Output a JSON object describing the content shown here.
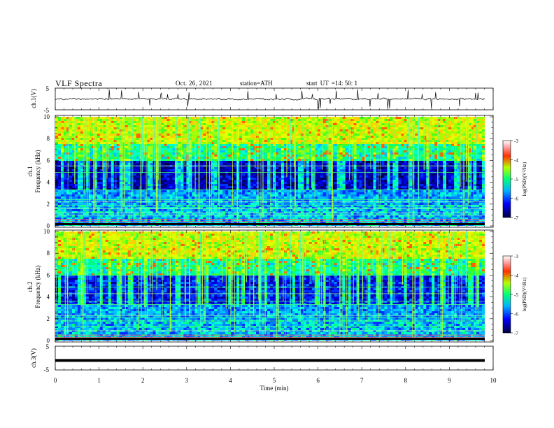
{
  "header": {
    "title": "VLF  Spectra",
    "date": "Oct. 26, 2021",
    "station": "station=ATH",
    "start_label": "start  UT  =",
    "start_value": "14: 50: 1"
  },
  "chart_data": [
    {
      "type": "line",
      "panel": "ch1-waveform",
      "ylabel": "ch.1(V)",
      "ylim": [
        -5,
        5
      ],
      "yticks": [
        "5",
        "-5"
      ],
      "xlim": [
        0,
        10
      ],
      "color": "#000000"
    },
    {
      "type": "heatmap",
      "panel": "ch1-spectrogram",
      "ylabel": "ch.1\nFrequency (kHz)",
      "ylim": [
        0,
        10
      ],
      "yticks": [
        "0",
        "2",
        "4",
        "6",
        "8",
        "10"
      ],
      "xlim": [
        0,
        10
      ],
      "colorbar": {
        "label": "log(PSD)(V²/Hz)",
        "range": [
          -7,
          -3
        ],
        "ticks": [
          "-3",
          "-4",
          "-5",
          "-6",
          "-7"
        ]
      }
    },
    {
      "type": "heatmap",
      "panel": "ch2-spectrogram",
      "ylabel": "ch.2\nFrequency (kHz)",
      "ylim": [
        0,
        10
      ],
      "yticks": [
        "0",
        "2",
        "4",
        "6",
        "8",
        "10"
      ],
      "xlim": [
        0,
        10
      ],
      "colorbar": {
        "label": "log(PSD)(V²/Hz)",
        "range": [
          -7,
          -3
        ],
        "ticks": [
          "-3",
          "-4",
          "-5",
          "-6",
          "-7"
        ]
      }
    },
    {
      "type": "line",
      "panel": "ch3-waveform",
      "ylabel": "ch.3(V)",
      "ylim": [
        -5,
        5
      ],
      "yticks": [
        "5",
        "-5"
      ],
      "xlim": [
        0,
        10
      ],
      "value": -1,
      "xlabel": "Time  (min)",
      "xticks": [
        "0",
        "1",
        "2",
        "3",
        "4",
        "5",
        "6",
        "7",
        "8",
        "9",
        "10"
      ],
      "color": "#000000"
    }
  ]
}
